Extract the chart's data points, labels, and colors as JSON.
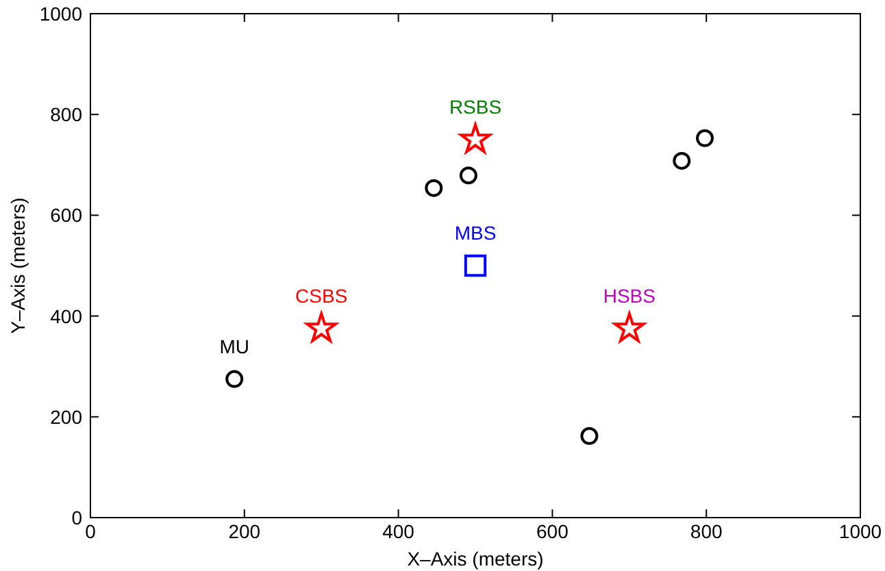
{
  "chart_data": {
    "type": "scatter",
    "xlabel": "X–Axis (meters)",
    "ylabel": "Y–Axis (meters)",
    "xlim": [
      0,
      1000
    ],
    "ylim": [
      0,
      1000
    ],
    "xticks": [
      0,
      200,
      400,
      600,
      800,
      1000
    ],
    "yticks": [
      0,
      200,
      400,
      600,
      800,
      1000
    ],
    "grid": false,
    "series": [
      {
        "color": "#000000",
        "marker": "circle",
        "x": [
          187,
          446,
          491,
          648,
          768,
          798
        ],
        "values": [
          275,
          654,
          679,
          162,
          708,
          753
        ]
      },
      {
        "color": "#ff0000",
        "marker": "star",
        "x": [
          300,
          500,
          700
        ],
        "values": [
          375,
          750,
          375
        ]
      },
      {
        "color": "#0000ff",
        "marker": "square",
        "x": [
          500
        ],
        "values": [
          500
        ]
      }
    ],
    "annotations": [
      {
        "text": "MU",
        "x": 187,
        "y": 275
      },
      {
        "text": "CSBS",
        "x": 300,
        "y": 375
      },
      {
        "text": "RSBS",
        "x": 500,
        "y": 750
      },
      {
        "text": "MBS",
        "x": 500,
        "y": 500
      },
      {
        "text": "HSBS",
        "x": 700,
        "y": 375
      }
    ]
  }
}
